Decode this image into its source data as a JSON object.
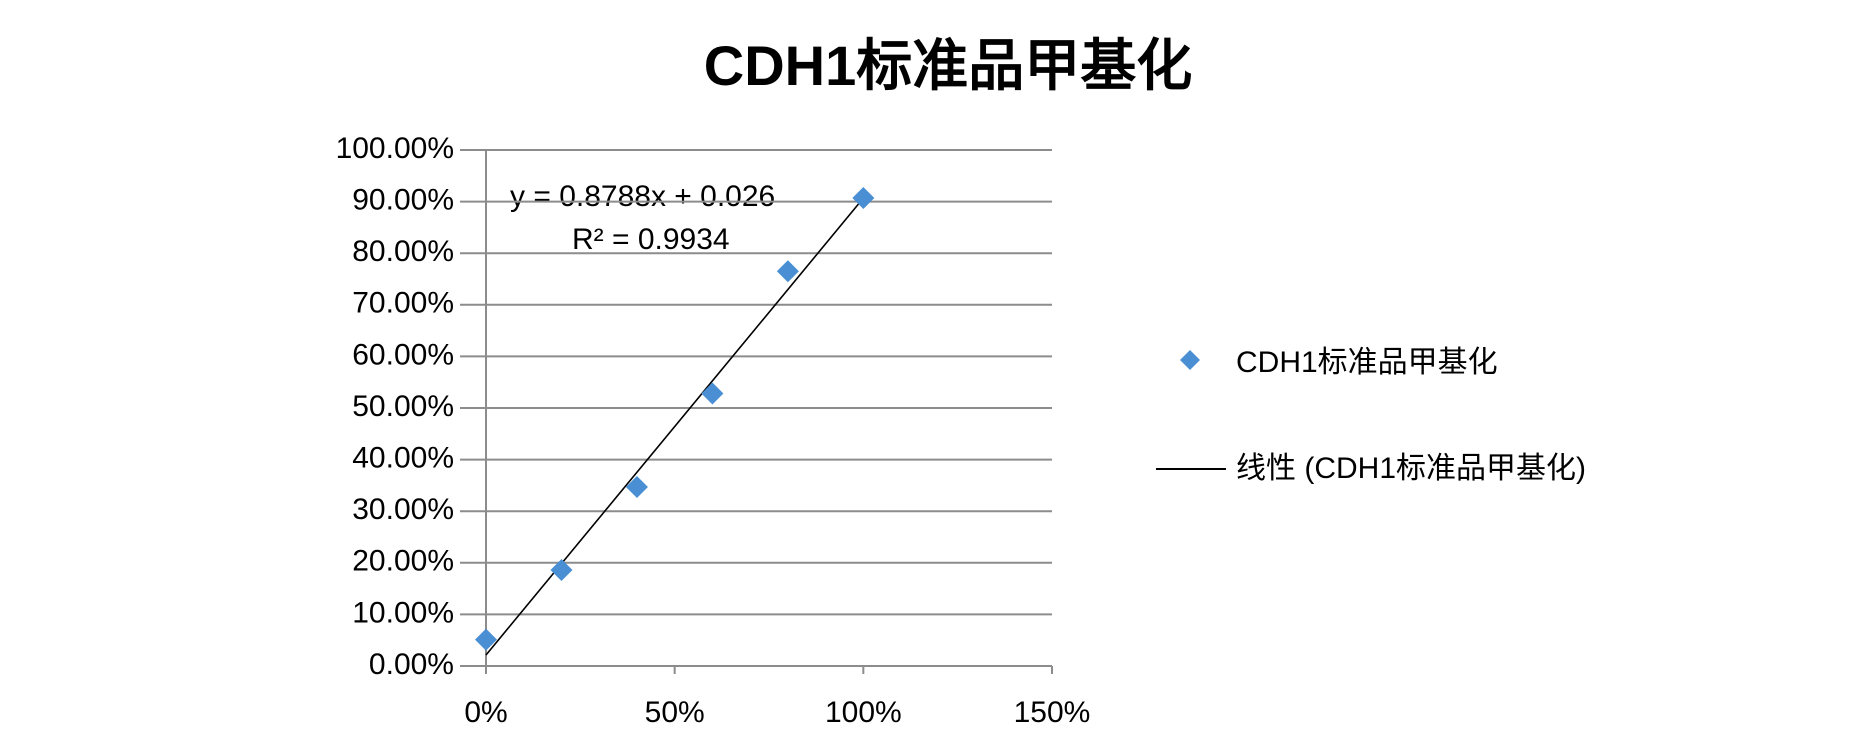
{
  "chart_data": {
    "type": "scatter",
    "title": "CDH1标准品甲基化",
    "x": [
      0,
      20,
      40,
      60,
      80,
      100
    ],
    "series": [
      {
        "name": "CDH1标准品甲基化",
        "color": "#4a8fd4",
        "values": [
          5.1,
          18.6,
          34.7,
          52.8,
          76.5,
          90.7
        ]
      }
    ],
    "trendline": {
      "name": "线性 (CDH1标准品甲基化)",
      "color": "#000000",
      "equation": "y = 0.8788x + 0.026",
      "r2": "R² = 0.9934"
    },
    "xlim": [
      0,
      150
    ],
    "xticks": [
      {
        "value": 0,
        "label": "0%"
      },
      {
        "value": 50,
        "label": "50%"
      },
      {
        "value": 100,
        "label": "100%"
      },
      {
        "value": 150,
        "label": "150%"
      }
    ],
    "ylim": [
      0,
      100
    ],
    "yticks": [
      {
        "value": 0,
        "label": "0.00%"
      },
      {
        "value": 10,
        "label": "10.00%"
      },
      {
        "value": 20,
        "label": "20.00%"
      },
      {
        "value": 30,
        "label": "30.00%"
      },
      {
        "value": 40,
        "label": "40.00%"
      },
      {
        "value": 50,
        "label": "50.00%"
      },
      {
        "value": 60,
        "label": "60.00%"
      },
      {
        "value": 70,
        "label": "70.00%"
      },
      {
        "value": 80,
        "label": "80.00%"
      },
      {
        "value": 90,
        "label": "90.00%"
      },
      {
        "value": 100,
        "label": "100.00%"
      }
    ],
    "grid": true
  }
}
